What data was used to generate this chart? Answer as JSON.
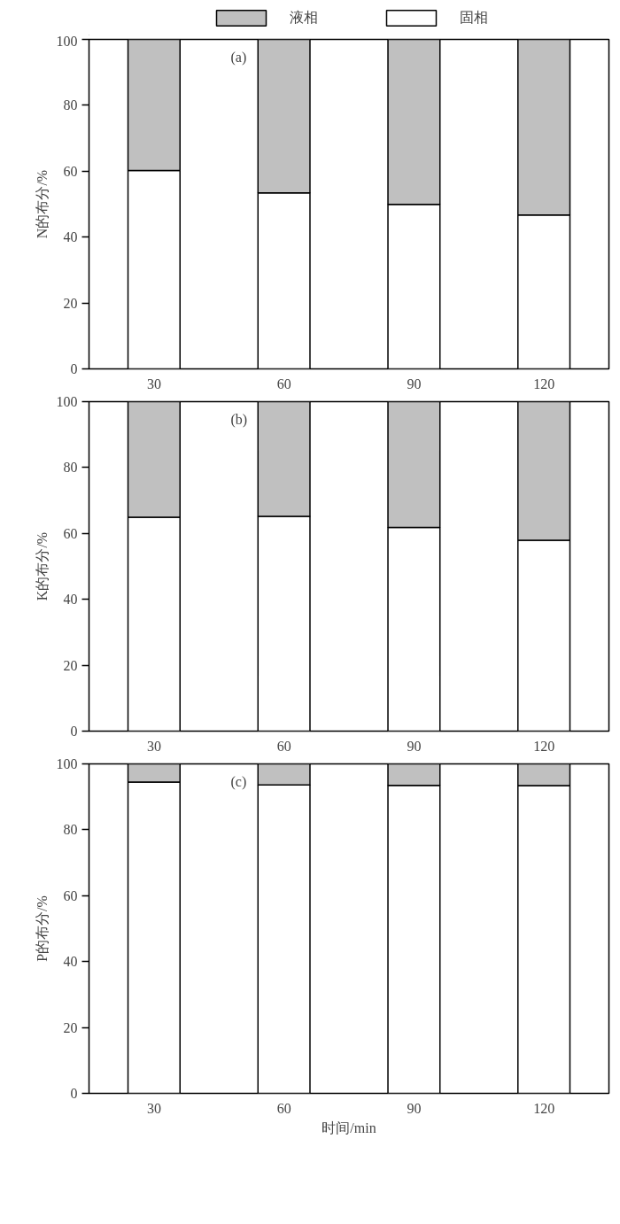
{
  "chart_data": [
    {
      "type": "bar",
      "stacked": true,
      "categories": [
        "30",
        "60",
        "90",
        "120"
      ],
      "ylabel": "N的布分/%",
      "ylim": [
        0,
        100
      ],
      "yticks": [
        0,
        20,
        40,
        60,
        80,
        100
      ],
      "legend": "top",
      "annotations": [
        "(a)"
      ],
      "series": [
        {
          "name": "固相",
          "color": "#ffffff",
          "values": [
            60.2,
            53.4,
            49.9,
            46.7
          ]
        },
        {
          "name": "液相",
          "color": "#c0c0c0",
          "values": [
            39.8,
            46.6,
            50.1,
            53.3
          ]
        }
      ]
    },
    {
      "type": "bar",
      "stacked": true,
      "categories": [
        "30",
        "60",
        "90",
        "120"
      ],
      "ylabel": "K的布分/%",
      "ylim": [
        0,
        100
      ],
      "yticks": [
        0,
        20,
        40,
        60,
        80,
        100
      ],
      "annotations": [
        "(b)"
      ],
      "series": [
        {
          "color": "#ffffff",
          "values": [
            64.9,
            65.2,
            61.8,
            57.9
          ]
        },
        {
          "color": "#c0c0c0",
          "values": [
            35.1,
            34.8,
            38.2,
            42.1
          ]
        }
      ]
    },
    {
      "type": "bar",
      "stacked": true,
      "categories": [
        "30",
        "60",
        "90",
        "120"
      ],
      "ylabel": "P的布分/%",
      "xlabel": "时间/min",
      "ylim": [
        0,
        100
      ],
      "yticks": [
        0,
        20,
        40,
        60,
        80,
        100
      ],
      "annotations": [
        "(c)"
      ],
      "series": [
        {
          "color": "#ffffff",
          "values": [
            94.5,
            93.6,
            93.5,
            93.4
          ]
        },
        {
          "color": "#c0c0c0",
          "values": [
            5.5,
            6.4,
            6.5,
            6.6
          ]
        }
      ]
    }
  ]
}
